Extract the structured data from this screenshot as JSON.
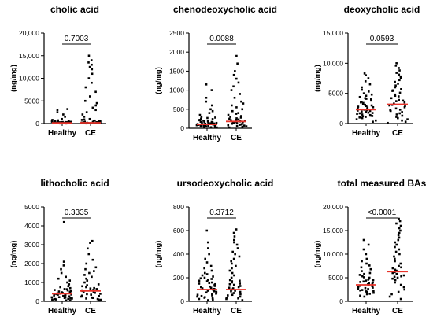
{
  "figure": {
    "panels_count": 6
  },
  "chart_data": [
    {
      "type": "scatter",
      "title": "cholic acid",
      "ylabel": "(ng/mg)",
      "xlabel": "",
      "categories": [
        "Healthy",
        "CE"
      ],
      "ylim": [
        0,
        20000
      ],
      "yticks": [
        0,
        5000,
        10000,
        15000,
        20000
      ],
      "ytick_labels": [
        "0",
        "5000",
        "10,000",
        "15,000",
        "20,000"
      ],
      "p_value": "0.7003",
      "median_color": "#e8332a",
      "medians": [
        150,
        180
      ],
      "series": [
        {
          "values": [
            50,
            80,
            100,
            120,
            150,
            200,
            250,
            300,
            350,
            400,
            500,
            600,
            700,
            800,
            1000,
            1500,
            2000,
            2500,
            3000,
            3200,
            60,
            90,
            130,
            160,
            180,
            220,
            260,
            320,
            420,
            520,
            40,
            70,
            110,
            140,
            170,
            210,
            240,
            280,
            380,
            450,
            30,
            55,
            85,
            95,
            115,
            135,
            190,
            230,
            270,
            330
          ]
        },
        {
          "values": [
            40,
            70,
            90,
            110,
            150,
            180,
            200,
            250,
            300,
            400,
            500,
            600,
            800,
            1000,
            1500,
            2000,
            2500,
            3000,
            3500,
            4000,
            4500,
            5000,
            6000,
            7000,
            8000,
            9000,
            10000,
            11000,
            12000,
            12500,
            13000,
            13500,
            14000,
            15000,
            60,
            80,
            120,
            140,
            160,
            220,
            260,
            350,
            450,
            550,
            650,
            900
          ]
        }
      ]
    },
    {
      "type": "scatter",
      "title": "chenodeoxycholic acid",
      "ylabel": "(ng/mg)",
      "xlabel": "",
      "categories": [
        "Healthy",
        "CE"
      ],
      "ylim": [
        0,
        2500
      ],
      "yticks": [
        0,
        500,
        1000,
        1500,
        2000,
        2500
      ],
      "ytick_labels": [
        "0",
        "500",
        "1000",
        "1500",
        "2000",
        "2500"
      ],
      "p_value": "0.0088",
      "median_color": "#e8332a",
      "medians": [
        100,
        180
      ],
      "series": [
        {
          "values": [
            20,
            30,
            40,
            50,
            60,
            70,
            80,
            90,
            100,
            110,
            120,
            130,
            140,
            150,
            160,
            170,
            180,
            200,
            220,
            250,
            280,
            300,
            350,
            400,
            450,
            500,
            600,
            700,
            800,
            1000,
            1150,
            25,
            35,
            45,
            55,
            65,
            75,
            85,
            95,
            105,
            115,
            125,
            135,
            145,
            155,
            165,
            190,
            210,
            240,
            270
          ]
        },
        {
          "values": [
            20,
            40,
            60,
            80,
            100,
            120,
            140,
            160,
            180,
            200,
            220,
            250,
            280,
            300,
            350,
            400,
            450,
            500,
            550,
            600,
            650,
            700,
            800,
            900,
            1000,
            1100,
            1200,
            1300,
            1400,
            1500,
            1700,
            1900,
            30,
            50,
            70,
            90,
            110,
            130,
            150,
            170,
            190,
            210,
            230,
            260,
            320,
            380
          ]
        }
      ]
    },
    {
      "type": "scatter",
      "title": "deoxycholic acid",
      "ylabel": "(ng/mg)",
      "xlabel": "",
      "categories": [
        "Healthy",
        "CE"
      ],
      "ylim": [
        0,
        15000
      ],
      "yticks": [
        0,
        5000,
        10000,
        15000
      ],
      "ytick_labels": [
        "0",
        "5000",
        "10,000",
        "15,000"
      ],
      "p_value": "0.0593",
      "median_color": "#e8332a",
      "medians": [
        2300,
        3200
      ],
      "series": [
        {
          "values": [
            300,
            500,
            700,
            900,
            1000,
            1100,
            1200,
            1300,
            1400,
            1500,
            1600,
            1700,
            1800,
            1900,
            2000,
            2100,
            2200,
            2300,
            2400,
            2500,
            2600,
            2700,
            2800,
            2900,
            3000,
            3200,
            3400,
            3600,
            3800,
            4000,
            4200,
            4400,
            4600,
            4800,
            5000,
            5300,
            5600,
            6000,
            6500,
            7000,
            7500,
            8000,
            8300,
            1250,
            1750,
            2150,
            2650,
            3100,
            3500,
            4100
          ]
        },
        {
          "values": [
            100,
            300,
            500,
            700,
            900,
            1100,
            1300,
            1500,
            1700,
            1900,
            2100,
            2300,
            2500,
            2700,
            2900,
            3100,
            3300,
            3500,
            3700,
            3900,
            4200,
            4500,
            4800,
            5100,
            5400,
            5700,
            6000,
            6300,
            6600,
            6900,
            7200,
            7500,
            7800,
            8100,
            8400,
            8800,
            9200,
            9600,
            10000,
            2200,
            3000,
            3800,
            4600,
            5500
          ]
        }
      ]
    },
    {
      "type": "scatter",
      "title": "lithocholic acid",
      "ylabel": "(ng/mg)",
      "xlabel": "",
      "categories": [
        "Healthy",
        "CE"
      ],
      "ylim": [
        0,
        5000
      ],
      "yticks": [
        0,
        1000,
        2000,
        3000,
        4000,
        5000
      ],
      "ytick_labels": [
        "0",
        "1000",
        "2000",
        "3000",
        "4000",
        "5000"
      ],
      "p_value": "0.3335",
      "median_color": "#e8332a",
      "medians": [
        400,
        550
      ],
      "series": [
        {
          "values": [
            50,
            80,
            100,
            120,
            150,
            180,
            200,
            220,
            250,
            280,
            300,
            320,
            350,
            380,
            400,
            420,
            450,
            480,
            500,
            550,
            600,
            650,
            700,
            750,
            800,
            900,
            1000,
            1100,
            1200,
            1300,
            1500,
            1700,
            1900,
            2100,
            4200,
            60,
            90,
            130,
            170,
            210,
            260,
            310,
            360,
            410,
            460,
            520,
            580,
            640
          ]
        },
        {
          "values": [
            30,
            60,
            90,
            120,
            150,
            200,
            250,
            300,
            350,
            400,
            450,
            500,
            550,
            600,
            650,
            700,
            750,
            800,
            850,
            900,
            1000,
            1100,
            1200,
            1300,
            1400,
            1500,
            1600,
            1700,
            1800,
            2000,
            2200,
            2500,
            2800,
            3100,
            3200,
            80,
            180,
            280,
            380,
            480,
            580,
            680
          ]
        }
      ]
    },
    {
      "type": "scatter",
      "title": "ursodeoxycholic acid",
      "ylabel": "(ng/mg)",
      "xlabel": "",
      "categories": [
        "Healthy",
        "CE"
      ],
      "ylim": [
        0,
        800
      ],
      "yticks": [
        0,
        200,
        400,
        600,
        800
      ],
      "ytick_labels": [
        "0",
        "200",
        "400",
        "600",
        "800"
      ],
      "p_value": "0.3712",
      "median_color": "#e8332a",
      "medians": [
        100,
        100
      ],
      "series": [
        {
          "values": [
            10,
            20,
            30,
            40,
            50,
            60,
            70,
            80,
            90,
            100,
            110,
            120,
            130,
            140,
            150,
            160,
            170,
            180,
            190,
            200,
            220,
            240,
            260,
            280,
            300,
            330,
            360,
            400,
            450,
            500,
            600,
            15,
            25,
            35,
            45,
            55,
            65,
            75,
            85,
            95,
            105,
            115,
            125,
            135,
            145,
            155,
            175,
            195,
            210,
            230
          ]
        },
        {
          "values": [
            10,
            20,
            30,
            40,
            50,
            60,
            70,
            80,
            90,
            100,
            110,
            120,
            130,
            140,
            150,
            160,
            170,
            180,
            200,
            220,
            240,
            260,
            280,
            300,
            320,
            340,
            360,
            380,
            400,
            420,
            450,
            480,
            500,
            520,
            550,
            580,
            610,
            25,
            55,
            85,
            115,
            145,
            175
          ]
        }
      ]
    },
    {
      "type": "scatter",
      "title": "total measured BAs",
      "ylabel": "(ng/mg)",
      "xlabel": "",
      "categories": [
        "Healthy",
        "CE"
      ],
      "ylim": [
        0,
        20000
      ],
      "yticks": [
        0,
        5000,
        10000,
        15000,
        20000
      ],
      "ytick_labels": [
        "0",
        "5000",
        "10,000",
        "15,000",
        "20,000"
      ],
      "p_value": "<0.0001",
      "median_color": "#e8332a",
      "medians": [
        3500,
        6300
      ],
      "series": [
        {
          "values": [
            1000,
            1200,
            1500,
            1800,
            2000,
            2200,
            2400,
            2600,
            2800,
            3000,
            3200,
            3400,
            3600,
            3800,
            4000,
            4200,
            4400,
            4600,
            4800,
            5000,
            5300,
            5600,
            6000,
            6400,
            6800,
            7200,
            7600,
            8000,
            8500,
            9000,
            10000,
            11000,
            12000,
            13000,
            1600,
            2300,
            2900,
            3300,
            3700,
            4100,
            4500,
            5100,
            5800,
            2100,
            2700
          ]
        },
        {
          "values": [
            500,
            1000,
            1500,
            2000,
            2500,
            3000,
            3500,
            4000,
            4500,
            5000,
            5500,
            6000,
            6500,
            7000,
            7500,
            8000,
            8500,
            9000,
            9500,
            10000,
            10500,
            11000,
            11500,
            12000,
            12500,
            13000,
            13500,
            14000,
            14500,
            15000,
            15500,
            16000,
            16500,
            17000,
            17500,
            5200,
            5800,
            6200,
            6700,
            7200,
            4800,
            5300,
            6400
          ]
        }
      ]
    }
  ]
}
